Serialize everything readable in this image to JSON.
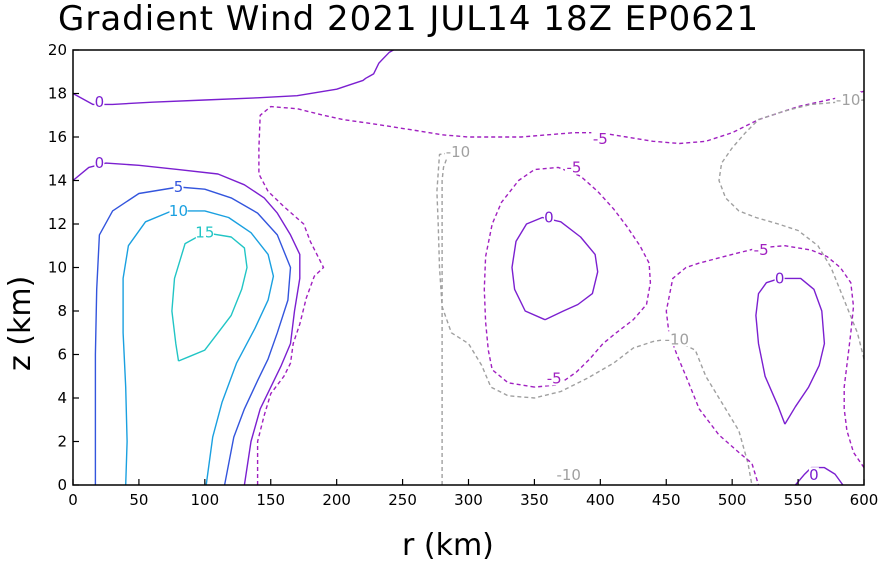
{
  "chart_data": {
    "type": "contour",
    "title": "Gradient Wind 2021 JUL14 18Z  EP0621",
    "xlabel": "r (km)",
    "ylabel": "z (km)",
    "xlim": [
      0,
      600
    ],
    "ylim": [
      0,
      20
    ],
    "xticks": [
      0,
      50,
      100,
      150,
      200,
      250,
      300,
      350,
      400,
      450,
      500,
      550,
      600
    ],
    "yticks": [
      0,
      2,
      4,
      6,
      8,
      10,
      12,
      14,
      16,
      18,
      20
    ],
    "colors": {
      "c15": "#21c5c5",
      "c10": "#1aa0e0",
      "c5": "#3355dd",
      "c0": "#7b1fd0",
      "cm5": "#a020c0",
      "cm10": "#a0a0a0"
    },
    "contours": [
      {
        "level": 15,
        "color_key": "c15",
        "dashed": false,
        "points": [
          [
            80,
            5.7
          ],
          [
            88,
            5.9
          ],
          [
            100,
            6.2
          ],
          [
            110,
            7.0
          ],
          [
            120,
            7.8
          ],
          [
            128,
            9.0
          ],
          [
            132,
            10.0
          ],
          [
            130,
            10.9
          ],
          [
            120,
            11.4
          ],
          [
            100,
            11.6
          ],
          [
            85,
            11.1
          ],
          [
            77,
            9.5
          ],
          [
            75,
            8.0
          ],
          [
            78,
            6.5
          ],
          [
            80,
            5.7
          ]
        ]
      },
      {
        "level": 10,
        "color_key": "c10",
        "dashed": false,
        "points": [
          [
            40,
            0
          ],
          [
            41,
            2.0
          ],
          [
            40,
            4.5
          ],
          [
            38,
            7.0
          ],
          [
            38,
            9.5
          ],
          [
            42,
            11.0
          ],
          [
            55,
            12.1
          ],
          [
            75,
            12.6
          ],
          [
            100,
            12.6
          ],
          [
            118,
            12.3
          ],
          [
            135,
            11.6
          ],
          [
            148,
            10.6
          ],
          [
            152,
            9.6
          ],
          [
            148,
            8.5
          ],
          [
            138,
            7.2
          ],
          [
            124,
            5.6
          ],
          [
            113,
            3.8
          ],
          [
            106,
            2.2
          ],
          [
            101,
            0
          ]
        ]
      },
      {
        "level": 5,
        "color_key": "c5",
        "dashed": false,
        "points": [
          [
            17,
            0
          ],
          [
            17,
            3.0
          ],
          [
            17,
            6.0
          ],
          [
            18,
            9.0
          ],
          [
            20,
            11.5
          ],
          [
            30,
            12.6
          ],
          [
            50,
            13.4
          ],
          [
            80,
            13.7
          ],
          [
            100,
            13.6
          ],
          [
            120,
            13.2
          ],
          [
            140,
            12.5
          ],
          [
            155,
            11.5
          ],
          [
            165,
            10.0
          ],
          [
            163,
            8.5
          ],
          [
            155,
            7.0
          ],
          [
            148,
            5.8
          ],
          [
            140,
            4.8
          ],
          [
            130,
            3.5
          ],
          [
            122,
            2.2
          ],
          [
            115,
            0
          ]
        ]
      },
      {
        "level": 0,
        "color_key": "c0",
        "dashed": false,
        "points": [
          [
            0,
            14.0
          ],
          [
            12,
            14.6
          ],
          [
            25,
            14.8
          ],
          [
            50,
            14.7
          ],
          [
            80,
            14.5
          ],
          [
            110,
            14.3
          ],
          [
            130,
            13.8
          ],
          [
            145,
            13.2
          ],
          [
            155,
            12.5
          ],
          [
            165,
            11.5
          ],
          [
            172,
            10.6
          ],
          [
            172,
            9.5
          ],
          [
            168,
            8.0
          ],
          [
            165,
            6.5
          ],
          [
            158,
            5.5
          ],
          [
            150,
            4.5
          ],
          [
            142,
            3.5
          ],
          [
            135,
            2.0
          ],
          [
            130,
            0
          ]
        ]
      },
      {
        "level": -5,
        "color_key": "cm5",
        "dashed": true,
        "points": [
          [
            140,
            0
          ],
          [
            140,
            2.0
          ],
          [
            145,
            3.2
          ],
          [
            150,
            4.2
          ],
          [
            160,
            5.0
          ],
          [
            165,
            5.6
          ],
          [
            167,
            6.5
          ],
          [
            172,
            7.4
          ],
          [
            177,
            8.6
          ],
          [
            183,
            9.6
          ],
          [
            190,
            10.0
          ],
          [
            185,
            10.6
          ],
          [
            180,
            11.2
          ],
          [
            175,
            12.0
          ],
          [
            160,
            12.8
          ],
          [
            148,
            13.5
          ],
          [
            141,
            14.3
          ],
          [
            141,
            15.5
          ],
          [
            142,
            17.0
          ],
          [
            150,
            17.4
          ],
          [
            170,
            17.3
          ],
          [
            190,
            17.0
          ],
          [
            205,
            16.8
          ],
          [
            228,
            16.6
          ],
          [
            260,
            16.3
          ],
          [
            280,
            16.1
          ],
          [
            300,
            16.0
          ],
          [
            320,
            16.0
          ],
          [
            340,
            16.0
          ],
          [
            360,
            16.1
          ],
          [
            380,
            16.2
          ],
          [
            400,
            16.2
          ],
          [
            420,
            16.0
          ],
          [
            440,
            15.8
          ],
          [
            460,
            15.7
          ],
          [
            480,
            15.8
          ],
          [
            500,
            16.2
          ],
          [
            520,
            16.8
          ],
          [
            550,
            17.4
          ],
          [
            580,
            17.8
          ],
          [
            600,
            18.1
          ]
        ]
      },
      {
        "level": 0,
        "color_key": "c0",
        "dashed": false,
        "points": [
          [
            0,
            18.0
          ],
          [
            15,
            17.5
          ],
          [
            30,
            17.5
          ],
          [
            60,
            17.6
          ],
          [
            100,
            17.7
          ],
          [
            140,
            17.8
          ],
          [
            170,
            17.9
          ],
          [
            200,
            18.2
          ],
          [
            210,
            18.4
          ],
          [
            220,
            18.6
          ],
          [
            222,
            18.7
          ],
          [
            225,
            18.8
          ],
          [
            228,
            18.9
          ],
          [
            232,
            19.4
          ],
          [
            240,
            19.9
          ],
          [
            243,
            20
          ]
        ]
      },
      {
        "level": -10,
        "color_key": "cm10",
        "dashed": true,
        "points": [
          [
            280,
            0
          ],
          [
            280,
            4.0
          ],
          [
            280,
            8.0
          ],
          [
            280,
            12.0
          ],
          [
            280,
            14.0
          ],
          [
            281,
            14.6
          ],
          [
            284,
            15.1
          ],
          [
            290,
            15.3
          ]
        ]
      },
      {
        "level": -5,
        "color_key": "cm5",
        "dashed": true,
        "points": [
          [
            350,
            4.5
          ],
          [
            330,
            4.7
          ],
          [
            318,
            5.3
          ],
          [
            315,
            6.2
          ],
          [
            313,
            7.5
          ],
          [
            312,
            9.0
          ],
          [
            313,
            10.5
          ],
          [
            318,
            12.0
          ],
          [
            325,
            13.0
          ],
          [
            338,
            14.0
          ],
          [
            350,
            14.5
          ],
          [
            368,
            14.6
          ],
          [
            385,
            14.2
          ],
          [
            398,
            13.5
          ],
          [
            410,
            12.7
          ],
          [
            420,
            11.9
          ],
          [
            430,
            11.0
          ],
          [
            437,
            10.2
          ],
          [
            438,
            9.3
          ],
          [
            435,
            8.3
          ],
          [
            425,
            7.6
          ],
          [
            412,
            7.0
          ],
          [
            402,
            6.5
          ],
          [
            392,
            5.8
          ],
          [
            382,
            5.2
          ],
          [
            368,
            4.6
          ],
          [
            350,
            4.5
          ]
        ]
      },
      {
        "level": 0,
        "color_key": "c0",
        "dashed": false,
        "points": [
          [
            358,
            7.6
          ],
          [
            343,
            8.0
          ],
          [
            335,
            9.0
          ],
          [
            333,
            10.0
          ],
          [
            336,
            11.2
          ],
          [
            344,
            12.0
          ],
          [
            356,
            12.3
          ],
          [
            370,
            12.1
          ],
          [
            385,
            11.4
          ],
          [
            396,
            10.6
          ],
          [
            398,
            9.8
          ],
          [
            394,
            8.8
          ],
          [
            383,
            8.3
          ],
          [
            372,
            8.0
          ],
          [
            358,
            7.6
          ]
        ]
      },
      {
        "level": -10,
        "color_key": "cm10",
        "dashed": true,
        "points": [
          [
            290,
            15.3
          ],
          [
            278,
            15.2
          ],
          [
            276,
            13.5
          ],
          [
            277,
            12.0
          ],
          [
            278,
            10.0
          ],
          [
            280,
            8.2
          ],
          [
            287,
            7.0
          ],
          [
            300,
            6.5
          ],
          [
            310,
            5.5
          ],
          [
            317,
            4.5
          ],
          [
            330,
            4.1
          ],
          [
            350,
            4.0
          ],
          [
            370,
            4.3
          ],
          [
            390,
            4.9
          ],
          [
            410,
            5.6
          ],
          [
            425,
            6.3
          ],
          [
            440,
            6.6
          ],
          [
            450,
            6.7
          ],
          [
            462,
            6.5
          ],
          [
            472,
            6.2
          ],
          [
            480,
            5.0
          ],
          [
            495,
            3.5
          ],
          [
            505,
            2.5
          ],
          [
            512,
            1.0
          ],
          [
            515,
            0
          ]
        ]
      },
      {
        "level": -10,
        "color_key": "cm10",
        "dashed": true,
        "points": [
          [
            600,
            5.8
          ],
          [
            595,
            7.0
          ],
          [
            585,
            8.5
          ],
          [
            575,
            10.0
          ],
          [
            565,
            11.0
          ],
          [
            550,
            11.7
          ],
          [
            535,
            12.0
          ],
          [
            518,
            12.3
          ],
          [
            505,
            12.6
          ],
          [
            495,
            13.2
          ],
          [
            490,
            14.0
          ],
          [
            492,
            14.8
          ],
          [
            500,
            15.5
          ],
          [
            510,
            16.2
          ],
          [
            520,
            16.8
          ],
          [
            540,
            17.2
          ],
          [
            560,
            17.5
          ],
          [
            580,
            17.6
          ],
          [
            600,
            17.7
          ]
        ]
      },
      {
        "level": -5,
        "color_key": "cm5",
        "dashed": true,
        "points": [
          [
            600,
            0.8
          ],
          [
            592,
            1.5
          ],
          [
            587,
            2.5
          ],
          [
            585,
            3.5
          ],
          [
            585,
            4.5
          ],
          [
            588,
            6.0
          ],
          [
            590,
            7.0
          ],
          [
            592,
            8.2
          ],
          [
            590,
            9.3
          ],
          [
            582,
            10.0
          ],
          [
            572,
            10.5
          ],
          [
            560,
            10.8
          ],
          [
            540,
            11.0
          ],
          [
            520,
            10.9
          ],
          [
            500,
            10.6
          ],
          [
            475,
            10.2
          ],
          [
            465,
            10.0
          ],
          [
            455,
            9.5
          ],
          [
            450,
            8.0
          ],
          [
            452,
            7.0
          ],
          [
            458,
            6.0
          ],
          [
            465,
            5.0
          ],
          [
            475,
            3.5
          ],
          [
            490,
            2.3
          ],
          [
            505,
            1.5
          ],
          [
            515,
            1.0
          ],
          [
            520,
            0
          ]
        ]
      },
      {
        "level": 0,
        "color_key": "c0",
        "dashed": false,
        "points": [
          [
            540,
            2.8
          ],
          [
            535,
            3.6
          ],
          [
            525,
            5.0
          ],
          [
            520,
            6.5
          ],
          [
            518,
            7.8
          ],
          [
            520,
            8.8
          ],
          [
            526,
            9.3
          ],
          [
            536,
            9.5
          ],
          [
            552,
            9.5
          ],
          [
            562,
            9.0
          ],
          [
            568,
            8.0
          ],
          [
            570,
            6.5
          ],
          [
            566,
            5.5
          ],
          [
            558,
            4.5
          ],
          [
            548,
            3.6
          ],
          [
            540,
            2.8
          ]
        ]
      },
      {
        "level": 0,
        "color_key": "c0",
        "dashed": false,
        "points": [
          [
            548,
            0
          ],
          [
            555,
            0.5
          ],
          [
            560,
            0.8
          ],
          [
            570,
            0.8
          ],
          [
            578,
            0.5
          ],
          [
            584,
            0
          ]
        ]
      }
    ],
    "contour_labels": [
      {
        "text": "0",
        "x": 20,
        "y": 17.6,
        "color_key": "c0"
      },
      {
        "text": "0",
        "x": 20,
        "y": 14.8,
        "color_key": "c0"
      },
      {
        "text": "5",
        "x": 80,
        "y": 13.7,
        "color_key": "c5"
      },
      {
        "text": "10",
        "x": 80,
        "y": 12.6,
        "color_key": "c10"
      },
      {
        "text": "15",
        "x": 100,
        "y": 11.6,
        "color_key": "c15"
      },
      {
        "text": "-10",
        "x": 292,
        "y": 15.3,
        "color_key": "cm10"
      },
      {
        "text": "-5",
        "x": 400,
        "y": 15.9,
        "color_key": "cm5"
      },
      {
        "text": "-5",
        "x": 380,
        "y": 14.6,
        "color_key": "cm5"
      },
      {
        "text": "0",
        "x": 361,
        "y": 12.3,
        "color_key": "c0"
      },
      {
        "text": "-5",
        "x": 365,
        "y": 4.9,
        "color_key": "cm5"
      },
      {
        "text": "-10",
        "x": 458,
        "y": 6.7,
        "color_key": "cm10"
      },
      {
        "text": "-10",
        "x": 588,
        "y": 17.7,
        "color_key": "cm10"
      },
      {
        "text": "-5",
        "x": 522,
        "y": 10.8,
        "color_key": "cm5"
      },
      {
        "text": "0",
        "x": 536,
        "y": 9.5,
        "color_key": "c0"
      },
      {
        "text": "-10",
        "x": 376,
        "y": 0.45,
        "color_key": "cm10"
      },
      {
        "text": "0",
        "x": 562,
        "y": 0.45,
        "color_key": "c0"
      }
    ]
  }
}
